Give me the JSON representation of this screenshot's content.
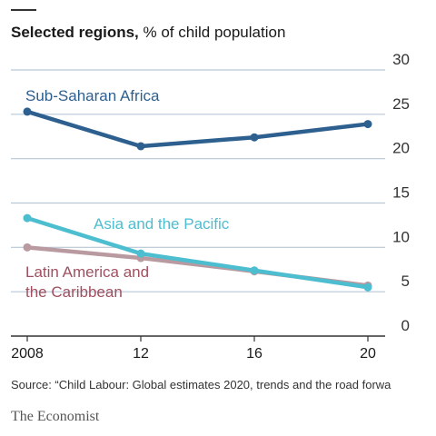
{
  "header": {
    "title": "Selected regions,",
    "subtitle": "% of child population"
  },
  "source": "Source: “Child Labour: Global estimates 2020, trends and the road forwa",
  "brand": "The Economist",
  "colors": {
    "sub_saharan": "#2d5f8f",
    "asia_pacific": "#4dbdd0",
    "latin_america": "#a05060",
    "latin_america_line": "#b89aa0",
    "gridline": "#b7c7d6",
    "baseline": "#333333"
  },
  "chart_data": {
    "type": "line",
    "title": "Selected regions, % of child population",
    "x": [
      2008,
      2012,
      2016,
      2020
    ],
    "x_tick_labels": [
      "2008",
      "12",
      "16",
      "20"
    ],
    "ylim": [
      0,
      30
    ],
    "y_ticks": [
      0,
      5,
      10,
      15,
      20,
      25,
      30
    ],
    "y_axis_side": "right",
    "grid": true,
    "series": [
      {
        "name": "Sub-Saharan Africa",
        "values": [
          25.3,
          21.4,
          22.4,
          23.9
        ]
      },
      {
        "name": "Asia and the Pacific",
        "values": [
          13.3,
          9.3,
          7.4,
          5.5
        ]
      },
      {
        "name": "Latin America and the Caribbean",
        "values": [
          10.0,
          8.8,
          7.3,
          5.7
        ]
      }
    ]
  }
}
